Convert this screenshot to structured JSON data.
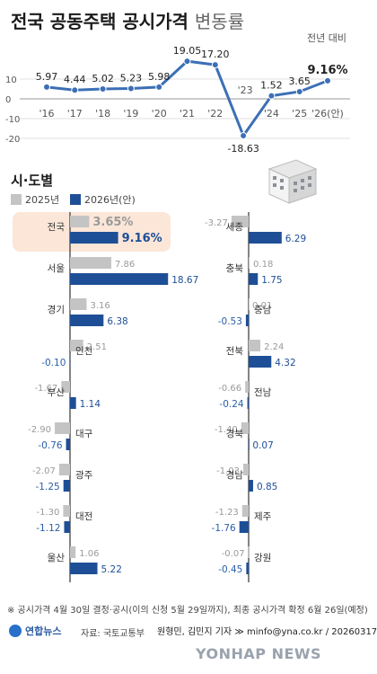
{
  "title": {
    "main": "전국 공동주택 공시가격",
    "sub": "변동률"
  },
  "line_unit": "전년 대비",
  "region_title": "시·도별",
  "legend": {
    "y2025": "2025년",
    "y2026": "2026년(안)"
  },
  "colors": {
    "line": "#3c6fb6",
    "bar2025": "#c4c4c4",
    "bar2026": "#1e4f96",
    "highlight_bg": "#fbe6d8",
    "neg": "#2a5fa8"
  },
  "chart_data": [
    {
      "type": "line",
      "x": [
        "'16",
        "'17",
        "'18",
        "'19",
        "'20",
        "'21",
        "'22",
        "'23",
        "'24",
        "'25",
        "'26(안)"
      ],
      "values": [
        5.97,
        4.44,
        5.02,
        5.23,
        5.98,
        19.05,
        17.2,
        -18.63,
        1.52,
        3.65,
        9.16
      ],
      "labels": [
        "5.97",
        "4.44",
        "5.02",
        "5.23",
        "5.98",
        "19.05",
        "17.20",
        "-18.63",
        "1.52",
        "3.65",
        "9.16%"
      ],
      "y_ticks": [
        "10",
        "0",
        "-10",
        "-20"
      ],
      "y_tick_values": [
        10,
        0,
        -10,
        -20
      ],
      "ylim": [
        -22,
        22
      ]
    },
    {
      "type": "bar",
      "series_names": [
        "2025년",
        "2026년(안)"
      ],
      "left": [
        {
          "name": "전국",
          "v2025": 3.65,
          "v2026": 9.16,
          "l2025": "3.65%",
          "l2026": "9.16%"
        },
        {
          "name": "서울",
          "v2025": 7.86,
          "v2026": 18.67,
          "l2025": "7.86",
          "l2026": "18.67"
        },
        {
          "name": "경기",
          "v2025": 3.16,
          "v2026": 6.38,
          "l2025": "3.16",
          "l2026": "6.38"
        },
        {
          "name": "인천",
          "v2025": 2.51,
          "v2026": -0.1,
          "l2025": "2.51",
          "l2026": "-0.10"
        },
        {
          "name": "부산",
          "v2025": -1.67,
          "v2026": 1.14,
          "l2025": "-1.67",
          "l2026": "1.14"
        },
        {
          "name": "대구",
          "v2025": -2.9,
          "v2026": -0.76,
          "l2025": "-2.90",
          "l2026": "-0.76"
        },
        {
          "name": "광주",
          "v2025": -2.07,
          "v2026": -1.25,
          "l2025": "-2.07",
          "l2026": "-1.25"
        },
        {
          "name": "대전",
          "v2025": -1.3,
          "v2026": -1.12,
          "l2025": "-1.30",
          "l2026": "-1.12"
        },
        {
          "name": "울산",
          "v2025": 1.06,
          "v2026": 5.22,
          "l2025": "1.06",
          "l2026": "5.22"
        }
      ],
      "right": [
        {
          "name": "세종",
          "v2025": -3.27,
          "v2026": 6.29,
          "l2025": "-3.27",
          "l2026": "6.29"
        },
        {
          "name": "충북",
          "v2025": 0.18,
          "v2026": 1.75,
          "l2025": "0.18",
          "l2026": "1.75"
        },
        {
          "name": "충남",
          "v2025": 0.01,
          "v2026": -0.53,
          "l2025": "0.01",
          "l2026": "-0.53"
        },
        {
          "name": "전북",
          "v2025": 2.24,
          "v2026": 4.32,
          "l2025": "2.24",
          "l2026": "4.32"
        },
        {
          "name": "전남",
          "v2025": -0.66,
          "v2026": -0.24,
          "l2025": "-0.66",
          "l2026": "-0.24"
        },
        {
          "name": "경북",
          "v2025": -1.4,
          "v2026": 0.07,
          "l2025": "-1.40",
          "l2026": "0.07"
        },
        {
          "name": "경남",
          "v2025": -1.03,
          "v2026": 0.85,
          "l2025": "-1.03",
          "l2026": "0.85"
        },
        {
          "name": "제주",
          "v2025": -1.23,
          "v2026": -1.76,
          "l2025": "-1.23",
          "l2026": "-1.76"
        },
        {
          "name": "강원",
          "v2025": -0.07,
          "v2026": -0.45,
          "l2025": "-0.07",
          "l2026": "-0.45"
        }
      ]
    }
  ],
  "footnote": "※ 공시가격 4월 30일 결정·공시(이의 신청 5월 29일까지), 최종 공시가격 확정 6월 26일(예정)",
  "logo_text": "연합뉴스",
  "source": "자료: 국토교통부",
  "credit": "원형민, 김민지 기자 ≫ minfo@yna.co.kr / 20260317",
  "watermark": "YONHAP NEWS"
}
